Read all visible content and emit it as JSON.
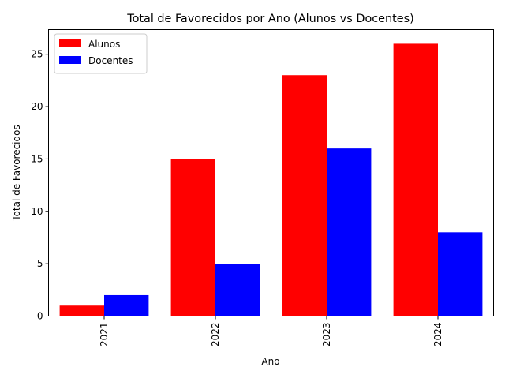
{
  "chart_data": {
    "type": "bar",
    "title": "Total de Favorecidos por Ano (Alunos vs Docentes)",
    "xlabel": "Ano",
    "ylabel": "Total de Favorecidos",
    "categories": [
      "2021",
      "2022",
      "2023",
      "2024"
    ],
    "series": [
      {
        "name": "Alunos",
        "values": [
          1,
          15,
          23,
          26
        ],
        "color": "#ff0000"
      },
      {
        "name": "Docentes",
        "values": [
          2,
          5,
          16,
          8
        ],
        "color": "#0000ff"
      }
    ],
    "ylim": [
      0,
      27.35
    ],
    "yticks": [
      0,
      5,
      10,
      15,
      20,
      25
    ],
    "grid": false,
    "legend": "top-left",
    "xtick_rotation": "vertical"
  }
}
